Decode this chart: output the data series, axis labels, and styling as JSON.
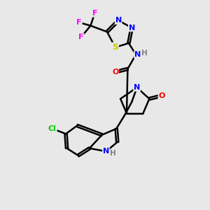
{
  "background_color": "#e8e8e8",
  "bond_color": "#000000",
  "bond_width": 1.8,
  "atom_colors": {
    "N": "#0000ff",
    "O": "#ff0000",
    "S": "#cccc00",
    "Cl": "#00cc00",
    "F": "#ff00ff",
    "C": "#000000",
    "H": "#808080"
  },
  "font_size": 8,
  "figsize": [
    3.0,
    3.0
  ],
  "dpi": 100
}
